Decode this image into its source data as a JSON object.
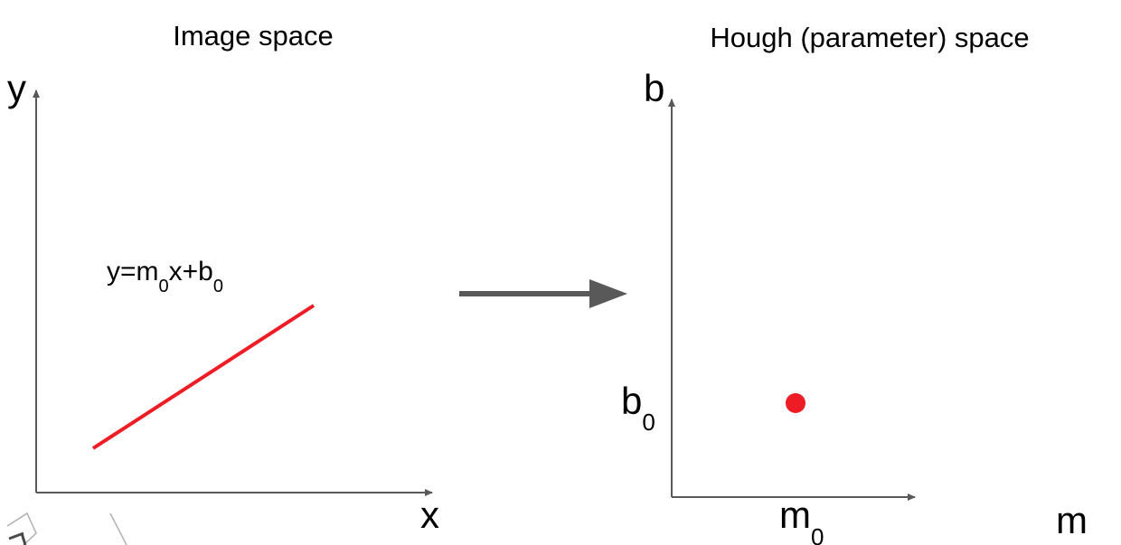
{
  "image_space": {
    "title": "Image space",
    "x_label": "x",
    "y_label": "y",
    "equation": {
      "base": "y=m",
      "sub1": "0",
      "mid": "x+b",
      "sub2": "0"
    },
    "line_color": "#ee1c25"
  },
  "hough_space": {
    "title": "Hough (parameter) space",
    "x_label": "m",
    "y_label": "b",
    "m_tick": {
      "base": "m",
      "sub": "0"
    },
    "b_tick": {
      "base": "b",
      "sub": "0"
    },
    "point_color": "#ee1c25"
  },
  "arrow_color": "#595959",
  "axis_color": "#595959"
}
